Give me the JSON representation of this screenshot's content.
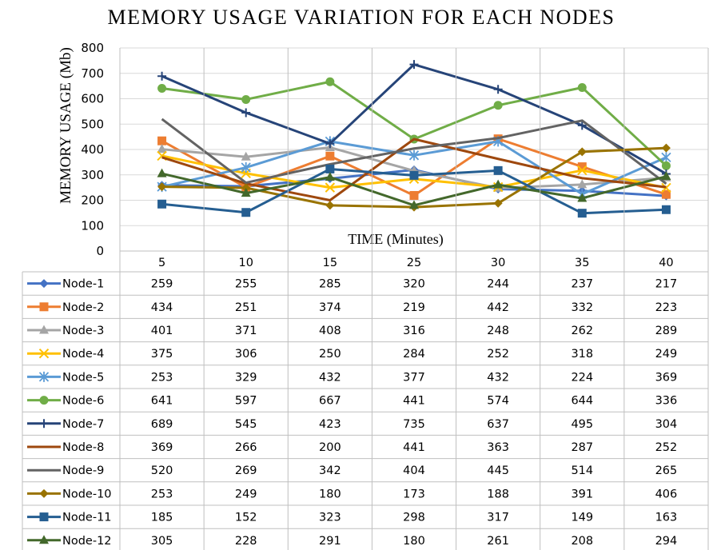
{
  "chart_data": {
    "type": "line",
    "title": "MEMORY USAGE VARIATION FOR EACH NODES",
    "xlabel": "TIME (Minutes)",
    "ylabel": "MEMORY USAGE (Mb)",
    "ylim": [
      0,
      800
    ],
    "yticks": [
      0,
      100,
      200,
      300,
      400,
      500,
      600,
      700,
      800
    ],
    "grid": true,
    "legend": "data-table",
    "categories": [
      "5",
      "10",
      "15",
      "25",
      "30",
      "35",
      "40"
    ],
    "series": [
      {
        "name": "Node-1",
        "color": "#4472C4",
        "marker": "diamond",
        "values": [
          259,
          255,
          285,
          320,
          244,
          237,
          217
        ]
      },
      {
        "name": "Node-2",
        "color": "#ED7D31",
        "marker": "square",
        "values": [
          434,
          251,
          374,
          219,
          442,
          332,
          223
        ]
      },
      {
        "name": "Node-3",
        "color": "#A5A5A5",
        "marker": "triangle",
        "values": [
          401,
          371,
          408,
          316,
          248,
          262,
          289
        ]
      },
      {
        "name": "Node-4",
        "color": "#FFC000",
        "marker": "x",
        "values": [
          375,
          306,
          250,
          284,
          252,
          318,
          249
        ]
      },
      {
        "name": "Node-5",
        "color": "#5B9BD5",
        "marker": "star",
        "values": [
          253,
          329,
          432,
          377,
          432,
          224,
          369
        ]
      },
      {
        "name": "Node-6",
        "color": "#70AD47",
        "marker": "circle",
        "values": [
          641,
          597,
          667,
          441,
          574,
          644,
          336
        ]
      },
      {
        "name": "Node-7",
        "color": "#264478",
        "marker": "plus",
        "values": [
          689,
          545,
          423,
          735,
          637,
          495,
          304
        ]
      },
      {
        "name": "Node-8",
        "color": "#9E480E",
        "marker": "none",
        "values": [
          369,
          266,
          200,
          441,
          363,
          287,
          252
        ]
      },
      {
        "name": "Node-9",
        "color": "#636363",
        "marker": "none",
        "values": [
          520,
          269,
          342,
          404,
          445,
          514,
          265
        ]
      },
      {
        "name": "Node-10",
        "color": "#997300",
        "marker": "diamond",
        "values": [
          253,
          249,
          180,
          173,
          188,
          391,
          406
        ]
      },
      {
        "name": "Node-11",
        "color": "#255E91",
        "marker": "square",
        "values": [
          185,
          152,
          323,
          298,
          317,
          149,
          163
        ]
      },
      {
        "name": "Node-12",
        "color": "#43682B",
        "marker": "triangle",
        "values": [
          305,
          228,
          291,
          180,
          261,
          208,
          294
        ]
      }
    ]
  }
}
